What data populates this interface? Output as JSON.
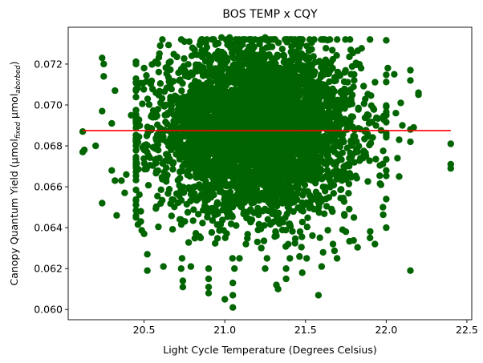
{
  "chart_data": {
    "type": "scatter",
    "title": "BOS TEMP x CQY",
    "xlabel": "Light Cycle Temperature (Degrees Celsius)",
    "ylabel": {
      "prefix": "Canopy Quantum Yield (μmol",
      "sub1": "fixed",
      "mid": " μmol",
      "sub2": "aborbed",
      "suffix": ")"
    },
    "xlim": [
      20.03,
      22.53
    ],
    "ylim": [
      0.0595,
      0.0738
    ],
    "xticks": [
      20.5,
      21.0,
      21.5,
      22.0,
      22.5
    ],
    "xtick_labels": [
      "20.5",
      "21.0",
      "21.5",
      "22.0",
      "22.5"
    ],
    "yticks": [
      0.06,
      0.062,
      0.064,
      0.066,
      0.068,
      0.07,
      0.072
    ],
    "ytick_labels": [
      "0.060",
      "0.062",
      "0.064",
      "0.066",
      "0.068",
      "0.070",
      "0.072"
    ],
    "grid": false,
    "point_color": "#006400",
    "line_color": "#ff0000",
    "trend_line": {
      "x": [
        20.12,
        22.4
      ],
      "y": [
        0.06875,
        0.06875
      ]
    },
    "point_cloud": {
      "n": 4500,
      "x_mean": 21.2,
      "x_std": 0.3,
      "y_mean": 0.0688,
      "y_std": 0.002
    },
    "points": [
      [
        20.12,
        0.0677
      ],
      [
        20.12,
        0.0687
      ],
      [
        20.13,
        0.0678
      ],
      [
        20.2,
        0.068
      ],
      [
        20.24,
        0.0723
      ],
      [
        20.25,
        0.072
      ],
      [
        20.24,
        0.0697
      ],
      [
        20.24,
        0.0652
      ],
      [
        20.3,
        0.0691
      ],
      [
        20.3,
        0.0668
      ],
      [
        20.33,
        0.0646
      ],
      [
        20.32,
        0.0663
      ],
      [
        20.36,
        0.0663
      ],
      [
        20.38,
        0.0657
      ],
      [
        20.39,
        0.0666
      ],
      [
        20.42,
        0.0695
      ],
      [
        20.45,
        0.0645
      ],
      [
        20.48,
        0.0643
      ],
      [
        20.5,
        0.0637
      ],
      [
        20.52,
        0.0627
      ],
      [
        20.52,
        0.0619
      ],
      [
        20.48,
        0.0648
      ],
      [
        20.62,
        0.0621
      ],
      [
        20.73,
        0.062
      ],
      [
        20.74,
        0.0614
      ],
      [
        20.74,
        0.0611
      ],
      [
        20.79,
        0.0621
      ],
      [
        20.9,
        0.0615
      ],
      [
        20.9,
        0.0611
      ],
      [
        20.9,
        0.0608
      ],
      [
        20.9,
        0.062
      ],
      [
        21.0,
        0.0605
      ],
      [
        21.05,
        0.0601
      ],
      [
        21.05,
        0.0607
      ],
      [
        21.05,
        0.0613
      ],
      [
        21.06,
        0.062
      ],
      [
        21.25,
        0.062
      ],
      [
        21.33,
        0.061
      ],
      [
        21.32,
        0.0612
      ],
      [
        21.38,
        0.0615
      ],
      [
        21.38,
        0.062
      ],
      [
        21.48,
        0.0618
      ],
      [
        21.58,
        0.0607
      ],
      [
        21.6,
        0.0621
      ],
      [
        21.67,
        0.0632
      ],
      [
        21.73,
        0.0639
      ],
      [
        21.75,
        0.0638
      ],
      [
        21.8,
        0.0645
      ],
      [
        21.9,
        0.0635
      ],
      [
        21.93,
        0.0632
      ],
      [
        22.0,
        0.064
      ],
      [
        22.15,
        0.0619
      ],
      [
        22.0,
        0.0654
      ],
      [
        21.98,
        0.065
      ],
      [
        22.08,
        0.0665
      ],
      [
        22.08,
        0.0683
      ],
      [
        22.1,
        0.069
      ],
      [
        22.06,
        0.0696
      ],
      [
        22.15,
        0.0688
      ],
      [
        22.15,
        0.0682
      ],
      [
        22.17,
        0.0689
      ],
      [
        22.15,
        0.0712
      ],
      [
        22.15,
        0.0717
      ],
      [
        22.2,
        0.0706
      ],
      [
        22.2,
        0.0705
      ],
      [
        22.4,
        0.0681
      ],
      [
        22.4,
        0.0671
      ],
      [
        22.4,
        0.0669
      ],
      [
        21.45,
        0.073
      ],
      [
        21.62,
        0.0732
      ],
      [
        21.9,
        0.0732
      ],
      [
        20.78,
        0.0731
      ],
      [
        20.75,
        0.0731
      ],
      [
        20.98,
        0.0733
      ],
      [
        21.03,
        0.0733
      ],
      [
        21.25,
        0.0733
      ],
      [
        20.6,
        0.0729
      ],
      [
        20.5,
        0.0718
      ],
      [
        20.32,
        0.0707
      ],
      [
        20.25,
        0.0714
      ],
      [
        22.01,
        0.0718
      ],
      [
        22.05,
        0.0715
      ],
      [
        22.09,
        0.0701
      ],
      [
        22.0,
        0.0668
      ],
      [
        22.07,
        0.0674
      ]
    ]
  }
}
